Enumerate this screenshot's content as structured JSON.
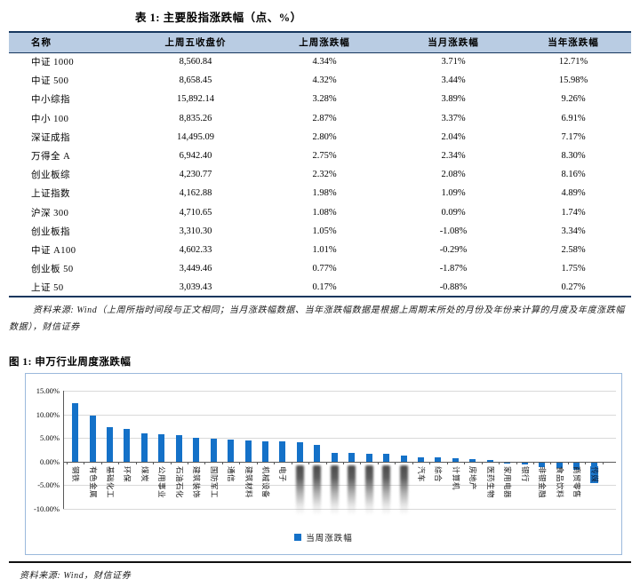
{
  "table": {
    "title": "表 1: 主要股指涨跌幅（点、%）",
    "columns": [
      "名称",
      "上周五收盘价",
      "上周涨跌幅",
      "当月涨跌幅",
      "当年涨跌幅"
    ],
    "rows": [
      [
        "中证 1000",
        "8,560.84",
        "4.34%",
        "3.71%",
        "12.71%"
      ],
      [
        "中证 500",
        "8,658.45",
        "4.32%",
        "3.44%",
        "15.98%"
      ],
      [
        "中小综指",
        "15,892.14",
        "3.28%",
        "3.89%",
        "9.26%"
      ],
      [
        "中小 100",
        "8,835.26",
        "2.87%",
        "3.37%",
        "6.91%"
      ],
      [
        "深证成指",
        "14,495.09",
        "2.80%",
        "2.04%",
        "7.17%"
      ],
      [
        "万得全 A",
        "6,942.40",
        "2.75%",
        "2.34%",
        "8.30%"
      ],
      [
        "创业板综",
        "4,230.77",
        "2.32%",
        "2.08%",
        "8.16%"
      ],
      [
        "上证指数",
        "4,162.88",
        "1.98%",
        "1.09%",
        "4.89%"
      ],
      [
        "沪深 300",
        "4,710.65",
        "1.08%",
        "0.09%",
        "1.74%"
      ],
      [
        "创业板指",
        "3,310.30",
        "1.05%",
        "-1.08%",
        "3.34%"
      ],
      [
        "中证 A100",
        "4,602.33",
        "1.01%",
        "-0.29%",
        "2.58%"
      ],
      [
        "创业板 50",
        "3,449.46",
        "0.77%",
        "-1.87%",
        "1.75%"
      ],
      [
        "上证 50",
        "3,039.43",
        "0.17%",
        "-0.88%",
        "0.27%"
      ]
    ],
    "source_note": "资料来源: Wind（上周所指时间段与正文相同；当月涨跌幅数据、当年涨跌幅数据是根据上周期末所处的月份及年份来计算的月度及年度涨跌幅数据），财信证券"
  },
  "figure": {
    "title": "图 1: 申万行业周度涨跌幅",
    "legend": "当周涨跌幅",
    "source": "资料来源: Wind，财信证券"
  },
  "chart_data": {
    "type": "bar",
    "title": "申万行业周度涨跌幅",
    "legend_entries": [
      "当周涨跌幅"
    ],
    "legend_position": "bottom-center",
    "grid": true,
    "ylim": [
      -10,
      15
    ],
    "ytick_labels": [
      "15.00%",
      "10.00%",
      "5.00%",
      "0.00%",
      "-5.00%",
      "-10.00%"
    ],
    "categories": [
      "钢铁",
      "有色金属",
      "基础化工",
      "环保",
      "煤炭",
      "公用事业",
      "石油石化",
      "建筑装饰",
      "国防军工",
      "通信",
      "建筑材料",
      "机械设备",
      "电子",
      "",
      "",
      "",
      "",
      "",
      "",
      "",
      "汽车",
      "综合",
      "计算机",
      "房地产",
      "医药生物",
      "家用电器",
      "银行",
      "非银金融",
      "食品饮料",
      "商贸零售",
      "传媒"
    ],
    "blurred_label_indices": [
      13,
      14,
      15,
      16,
      17,
      18,
      19
    ],
    "highlighted_label_index": 30,
    "values": [
      12.4,
      9.7,
      7.2,
      7.0,
      6.0,
      5.7,
      5.6,
      5.1,
      4.8,
      4.7,
      4.5,
      4.25,
      4.2,
      4.0,
      3.6,
      1.9,
      1.8,
      1.65,
      1.6,
      1.2,
      0.95,
      0.9,
      0.65,
      0.6,
      0.4,
      -0.25,
      -0.5,
      -1.0,
      -1.2,
      -1.5,
      -1.9
    ]
  },
  "colors": {
    "bar": "#1471C8",
    "table_header_bg": "#B9CCE3",
    "navy_rule": "#17375E",
    "chart_border": "#9BB9DC",
    "gridline": "#D9D9D9"
  }
}
